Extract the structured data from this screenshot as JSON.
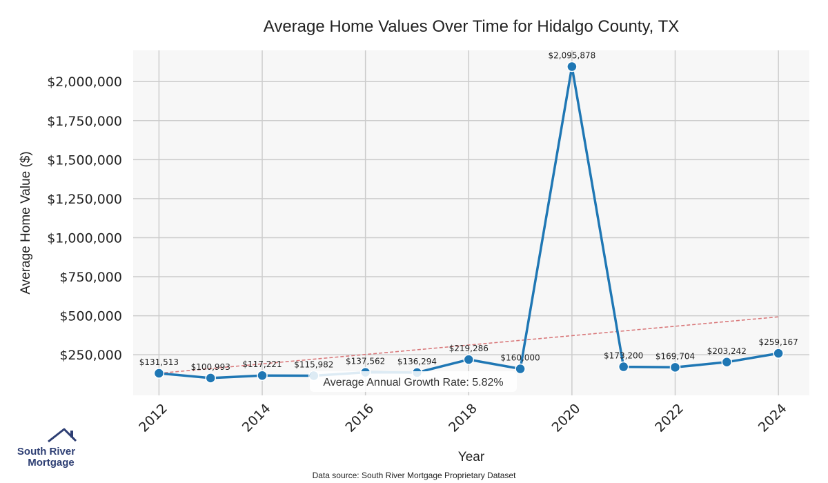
{
  "chart_data": {
    "type": "line",
    "title": "Average Home Values Over Time for Hidalgo County, TX",
    "xlabel": "Year",
    "ylabel": "Average Home Value ($)",
    "x": [
      2012,
      2013,
      2014,
      2015,
      2016,
      2017,
      2018,
      2019,
      2020,
      2021,
      2022,
      2023,
      2024
    ],
    "series": [
      {
        "values": [
          131513,
          100993,
          117221,
          115982,
          137562,
          136294,
          219286,
          160000,
          2095878,
          173200,
          169704,
          203242,
          259167
        ],
        "labels": [
          "$131,513",
          "$100,993",
          "$117,221",
          "$115,982",
          "$137,562",
          "$136,294",
          "$219,286",
          "$160,000",
          "$2,095,878",
          "$173,200",
          "$169,704",
          "$203,242",
          "$259,167"
        ],
        "color": "#1f77b4"
      }
    ],
    "trendline": {
      "start": [
        2012,
        131513
      ],
      "end": [
        2024,
        493000
      ],
      "color": "#d9797b",
      "style": "dashed"
    },
    "xticks": [
      "2012",
      "2014",
      "2016",
      "2018",
      "2020",
      "2022",
      "2024"
    ],
    "yticks": [
      "$250,000",
      "$500,000",
      "$750,000",
      "$1,000,000",
      "$1,250,000",
      "$1,500,000",
      "$1,750,000",
      "$2,000,000"
    ],
    "ytick_values": [
      250000,
      500000,
      750000,
      1000000,
      1250000,
      1500000,
      1750000,
      2000000
    ],
    "xlim": [
      2011.5,
      2024.6
    ],
    "ylim": [
      -10000,
      2200000
    ],
    "grid": true,
    "annotation": "Average Annual Growth Rate: 5.82%",
    "source": "Data source: South River Mortgage Proprietary Dataset"
  },
  "logo": {
    "line1": "South River",
    "line2": "Mortgage"
  },
  "colors": {
    "plot_bg": "#f7f7f7",
    "grid": "#cccccc",
    "line": "#1f77b4",
    "trend": "#d9797b",
    "logo": "#2d3e73"
  }
}
